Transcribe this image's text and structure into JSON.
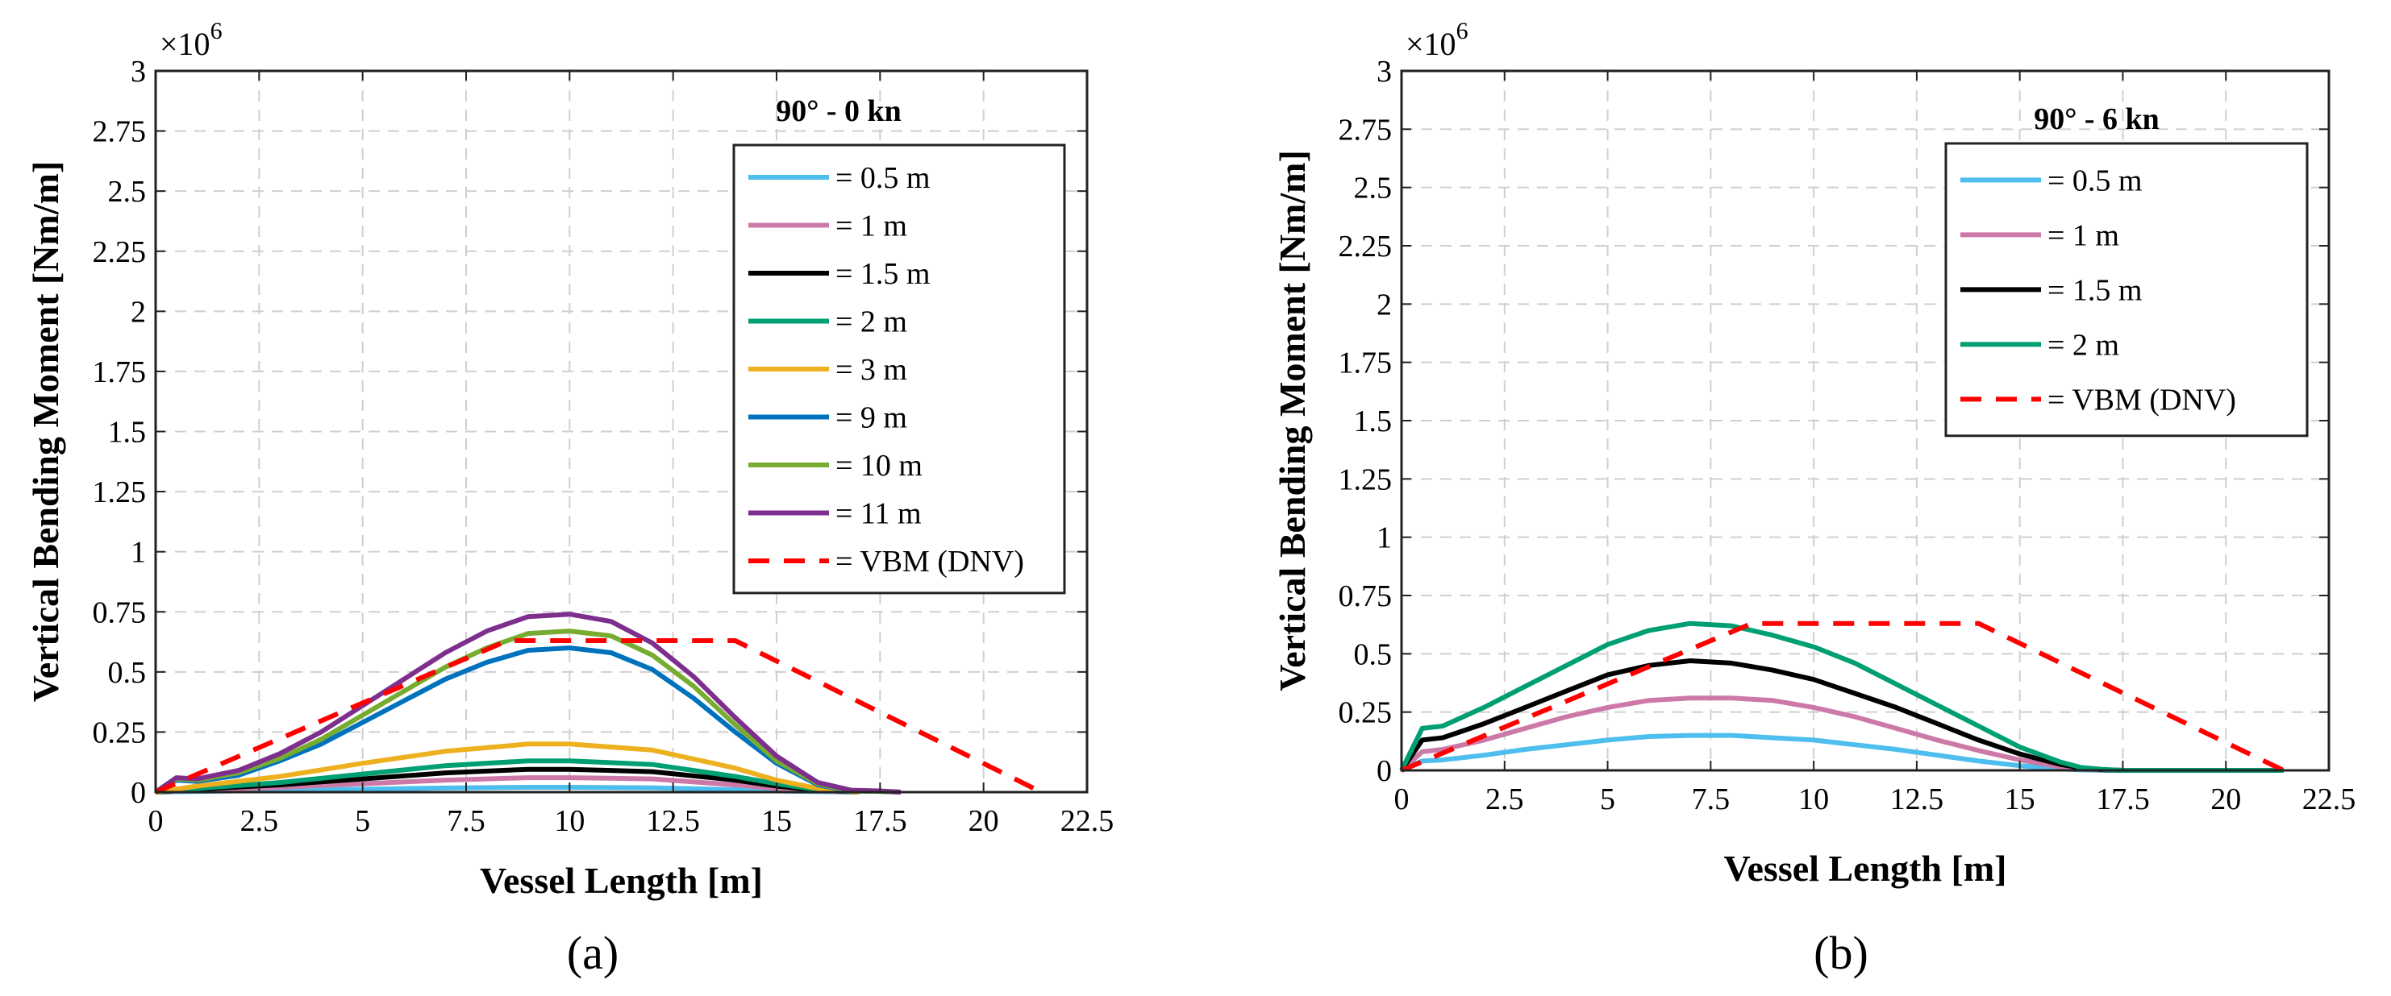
{
  "figure": {
    "panels": [
      {
        "caption": "(a)"
      },
      {
        "caption": "(b)"
      }
    ]
  },
  "chart_data": [
    {
      "type": "line",
      "title": "90° - 0 kn",
      "caption": "(a)",
      "xlabel": "Vessel Length [m]",
      "ylabel": "Vertical Bending Moment [Nm/m]",
      "y_multiplier": "×10",
      "y_multiplier_exp": "6",
      "xlim": [
        0,
        22.5
      ],
      "ylim": [
        0,
        3
      ],
      "xticks": [
        0,
        2.5,
        5,
        7.5,
        10,
        12.5,
        15,
        17.5,
        20,
        22.5
      ],
      "xtick_labels": [
        "0",
        "2.5",
        "5",
        "7.5",
        "10",
        "12.5",
        "15",
        "17.5",
        "20",
        "22.5"
      ],
      "yticks": [
        0,
        0.25,
        0.5,
        0.75,
        1,
        1.25,
        1.5,
        1.75,
        2,
        2.25,
        2.5,
        2.75,
        3
      ],
      "ytick_labels": [
        "0",
        "0.25",
        "0.5",
        "0.75",
        "1",
        "1.25",
        "1.5",
        "1.75",
        "2",
        "2.25",
        "2.5",
        "2.75",
        "3"
      ],
      "grid": true,
      "legend_position": "top-right",
      "series": [
        {
          "name": "= 0.5 m",
          "color": "#4dbeee",
          "dash": false,
          "x": [
            0,
            1,
            3,
            5,
            7,
            9,
            10,
            12,
            14,
            15,
            16,
            17
          ],
          "y": [
            0,
            0.003,
            0.007,
            0.012,
            0.017,
            0.02,
            0.02,
            0.018,
            0.01,
            0.005,
            0.002,
            0
          ]
        },
        {
          "name": "= 1 m",
          "color": "#cc79a7",
          "dash": false,
          "x": [
            0,
            1,
            3,
            5,
            7,
            9,
            10,
            12,
            14,
            15,
            16,
            17
          ],
          "y": [
            0,
            0.008,
            0.02,
            0.035,
            0.05,
            0.06,
            0.06,
            0.055,
            0.03,
            0.015,
            0.005,
            0
          ]
        },
        {
          "name": "= 1.5 m",
          "color": "#000000",
          "dash": false,
          "x": [
            0,
            1,
            3,
            5,
            7,
            9,
            10,
            12,
            14,
            15,
            16,
            17
          ],
          "y": [
            0,
            0.012,
            0.03,
            0.055,
            0.08,
            0.095,
            0.095,
            0.085,
            0.05,
            0.025,
            0.008,
            0
          ]
        },
        {
          "name": "= 2 m",
          "color": "#009e73",
          "dash": false,
          "x": [
            0,
            1,
            3,
            5,
            7,
            9,
            10,
            12,
            14,
            15,
            16,
            17
          ],
          "y": [
            0,
            0.015,
            0.04,
            0.075,
            0.11,
            0.13,
            0.13,
            0.115,
            0.065,
            0.035,
            0.01,
            0
          ]
        },
        {
          "name": "= 3 m",
          "color": "#edb120",
          "dash": false,
          "x": [
            0,
            1,
            3,
            5,
            7,
            9,
            10,
            12,
            14,
            15,
            16,
            17
          ],
          "y": [
            0,
            0.025,
            0.065,
            0.12,
            0.17,
            0.2,
            0.2,
            0.175,
            0.1,
            0.05,
            0.015,
            0
          ]
        },
        {
          "name": "= 9 m",
          "color": "#0072bd",
          "dash": false,
          "x": [
            0,
            0.5,
            1,
            2,
            3,
            4,
            5,
            6,
            7,
            8,
            9,
            10,
            11,
            12,
            13,
            14,
            15,
            16,
            16.8,
            17.5,
            18
          ],
          "y": [
            0,
            0.05,
            0.045,
            0.07,
            0.13,
            0.2,
            0.29,
            0.38,
            0.47,
            0.54,
            0.59,
            0.6,
            0.58,
            0.51,
            0.39,
            0.25,
            0.12,
            0.03,
            0.005,
            0.003,
            0
          ]
        },
        {
          "name": "= 10 m",
          "color": "#77ac30",
          "dash": false,
          "x": [
            0,
            0.5,
            1,
            2,
            3,
            4,
            5,
            6,
            7,
            8,
            9,
            10,
            11,
            12,
            13,
            14,
            15,
            16,
            16.8,
            17.5,
            18
          ],
          "y": [
            0,
            0.055,
            0.05,
            0.08,
            0.14,
            0.22,
            0.32,
            0.42,
            0.52,
            0.6,
            0.66,
            0.67,
            0.65,
            0.57,
            0.44,
            0.28,
            0.13,
            0.035,
            0.005,
            0.003,
            0
          ]
        },
        {
          "name": "= 11 m",
          "color": "#7e2f8e",
          "dash": false,
          "x": [
            0,
            0.5,
            1,
            2,
            3,
            4,
            5,
            6,
            7,
            8,
            9,
            10,
            11,
            12,
            13,
            14,
            15,
            16,
            16.8,
            17.5,
            18
          ],
          "y": [
            0,
            0.06,
            0.055,
            0.09,
            0.16,
            0.25,
            0.36,
            0.47,
            0.58,
            0.67,
            0.73,
            0.74,
            0.71,
            0.62,
            0.48,
            0.31,
            0.15,
            0.04,
            0.008,
            0.005,
            0
          ]
        },
        {
          "name": "= VBM (DNV)",
          "color": "#ff0000",
          "dash": true,
          "x": [
            0,
            8.5,
            14,
            21.4
          ],
          "y": [
            0,
            0.63,
            0.63,
            0
          ]
        }
      ]
    },
    {
      "type": "line",
      "title": "90° - 6 kn",
      "caption": "(b)",
      "xlabel": "Vessel Length [m]",
      "ylabel": "Vertical Bending Moment [Nm/m]",
      "y_multiplier": "×10",
      "y_multiplier_exp": "6",
      "xlim": [
        0,
        22.5
      ],
      "ylim": [
        0,
        3
      ],
      "xticks": [
        0,
        2.5,
        5,
        7.5,
        10,
        12.5,
        15,
        17.5,
        20,
        22.5
      ],
      "xtick_labels": [
        "0",
        "2.5",
        "5",
        "7.5",
        "10",
        "12.5",
        "15",
        "17.5",
        "20",
        "22.5"
      ],
      "yticks": [
        0,
        0.25,
        0.5,
        0.75,
        1,
        1.25,
        1.5,
        1.75,
        2,
        2.25,
        2.5,
        2.75,
        3
      ],
      "ytick_labels": [
        "0",
        "0.25",
        "0.5",
        "0.75",
        "1",
        "1.25",
        "1.5",
        "1.75",
        "2",
        "2.25",
        "2.5",
        "2.75",
        "3"
      ],
      "grid": true,
      "legend_position": "top-right",
      "series": [
        {
          "name": "= 0.5 m",
          "color": "#4dbeee",
          "dash": false,
          "x": [
            0,
            0.5,
            1,
            2,
            3,
            4,
            5,
            6,
            7,
            8,
            9,
            10,
            11,
            12,
            13,
            14,
            15,
            16,
            16.5,
            17,
            17.5,
            18,
            19,
            20,
            21,
            21.4
          ],
          "y": [
            0,
            0.04,
            0.045,
            0.065,
            0.09,
            0.11,
            0.13,
            0.145,
            0.15,
            0.15,
            0.14,
            0.13,
            0.11,
            0.09,
            0.065,
            0.04,
            0.02,
            0.006,
            0.002,
            0,
            0,
            0,
            0,
            0,
            0,
            0
          ]
        },
        {
          "name": "= 1 m",
          "color": "#cc79a7",
          "dash": false,
          "x": [
            0,
            0.5,
            1,
            2,
            3,
            4,
            5,
            6,
            7,
            8,
            9,
            10,
            11,
            12,
            13,
            14,
            15,
            16,
            16.5,
            17,
            17.5,
            18,
            19,
            20,
            21,
            21.4
          ],
          "y": [
            0,
            0.08,
            0.09,
            0.13,
            0.18,
            0.23,
            0.27,
            0.3,
            0.31,
            0.31,
            0.3,
            0.27,
            0.23,
            0.18,
            0.13,
            0.085,
            0.045,
            0.015,
            0.005,
            0.002,
            0,
            0,
            0,
            0,
            0,
            0
          ]
        },
        {
          "name": "= 1.5 m",
          "color": "#000000",
          "dash": false,
          "x": [
            0,
            0.5,
            1,
            2,
            3,
            4,
            5,
            6,
            7,
            8,
            9,
            10,
            11,
            12,
            13,
            14,
            15,
            16,
            16.5,
            17,
            17.5,
            18,
            19,
            20,
            21,
            21.4
          ],
          "y": [
            0,
            0.13,
            0.14,
            0.2,
            0.27,
            0.34,
            0.41,
            0.45,
            0.47,
            0.46,
            0.43,
            0.39,
            0.33,
            0.27,
            0.2,
            0.13,
            0.07,
            0.025,
            0.01,
            0.003,
            0,
            0,
            0,
            0,
            0,
            0
          ]
        },
        {
          "name": "= 2 m",
          "color": "#009e73",
          "dash": false,
          "x": [
            0,
            0.5,
            1,
            2,
            3,
            4,
            5,
            6,
            7,
            8,
            9,
            10,
            11,
            12,
            13,
            14,
            15,
            16,
            16.5,
            17,
            17.5,
            18,
            19,
            20,
            21,
            21.4
          ],
          "y": [
            0,
            0.18,
            0.19,
            0.27,
            0.36,
            0.45,
            0.54,
            0.6,
            0.63,
            0.62,
            0.58,
            0.53,
            0.46,
            0.37,
            0.28,
            0.19,
            0.1,
            0.035,
            0.012,
            0.004,
            0,
            0,
            0,
            0,
            0,
            0
          ]
        },
        {
          "name": "= VBM (DNV)",
          "color": "#ff0000",
          "dash": true,
          "x": [
            0,
            8.5,
            14,
            21.4
          ],
          "y": [
            0,
            0.63,
            0.63,
            0
          ]
        }
      ]
    }
  ]
}
